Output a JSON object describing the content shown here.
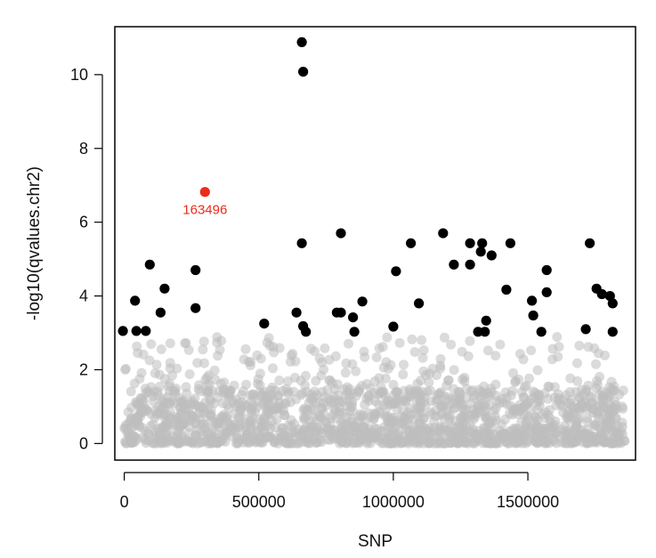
{
  "chart_data": {
    "type": "scatter",
    "title": "",
    "xlabel": "SNP",
    "ylabel": "-log10(qvalues.chr2)",
    "xlim": [
      -35000,
      1900000
    ],
    "ylim": [
      -0.45,
      11.3
    ],
    "xticks": [
      0,
      500000,
      1000000,
      1500000
    ],
    "xtick_labels": [
      "0",
      "500000",
      "1000000",
      "1500000"
    ],
    "yticks": [
      0,
      2,
      4,
      6,
      8,
      10
    ],
    "ytick_labels": [
      "0",
      "2",
      "4",
      "6",
      "8",
      "10"
    ],
    "grid": false,
    "colors": {
      "background_points": "#bdbdbd",
      "significant_points": "#000000",
      "highlight_point": "#ee2a1b"
    },
    "background_summary": {
      "x_range": [
        0,
        1860000
      ],
      "dense_band_y_max": 1.4,
      "max_y": 2.9
    },
    "series": [
      {
        "name": "",
        "color": "#000000",
        "points": [
          {
            "x": -5000,
            "y": 3.05
          },
          {
            "x": 45000,
            "y": 3.05
          },
          {
            "x": 80000,
            "y": 3.05
          },
          {
            "x": 40000,
            "y": 3.87
          },
          {
            "x": 95000,
            "y": 4.85
          },
          {
            "x": 135000,
            "y": 3.55
          },
          {
            "x": 150000,
            "y": 4.2
          },
          {
            "x": 265000,
            "y": 4.7
          },
          {
            "x": 265000,
            "y": 3.67
          },
          {
            "x": 520000,
            "y": 3.25
          },
          {
            "x": 640000,
            "y": 3.55
          },
          {
            "x": 660000,
            "y": 5.43
          },
          {
            "x": 665000,
            "y": 3.18
          },
          {
            "x": 675000,
            "y": 3.03
          },
          {
            "x": 660000,
            "y": 10.88
          },
          {
            "x": 665000,
            "y": 10.08
          },
          {
            "x": 790000,
            "y": 3.55
          },
          {
            "x": 805000,
            "y": 3.55
          },
          {
            "x": 805000,
            "y": 5.7
          },
          {
            "x": 850000,
            "y": 3.42
          },
          {
            "x": 855000,
            "y": 3.03
          },
          {
            "x": 885000,
            "y": 3.85
          },
          {
            "x": 1000000,
            "y": 3.17
          },
          {
            "x": 1010000,
            "y": 4.67
          },
          {
            "x": 1065000,
            "y": 5.43
          },
          {
            "x": 1095000,
            "y": 3.8
          },
          {
            "x": 1185000,
            "y": 5.7
          },
          {
            "x": 1225000,
            "y": 4.85
          },
          {
            "x": 1285000,
            "y": 5.43
          },
          {
            "x": 1285000,
            "y": 4.85
          },
          {
            "x": 1315000,
            "y": 3.03
          },
          {
            "x": 1325000,
            "y": 5.2
          },
          {
            "x": 1330000,
            "y": 5.43
          },
          {
            "x": 1340000,
            "y": 3.03
          },
          {
            "x": 1345000,
            "y": 3.33
          },
          {
            "x": 1365000,
            "y": 5.1
          },
          {
            "x": 1420000,
            "y": 4.17
          },
          {
            "x": 1435000,
            "y": 5.43
          },
          {
            "x": 1515000,
            "y": 3.87
          },
          {
            "x": 1520000,
            "y": 3.47
          },
          {
            "x": 1550000,
            "y": 3.03
          },
          {
            "x": 1570000,
            "y": 4.7
          },
          {
            "x": 1570000,
            "y": 4.1
          },
          {
            "x": 1715000,
            "y": 3.1
          },
          {
            "x": 1730000,
            "y": 5.43
          },
          {
            "x": 1755000,
            "y": 4.2
          },
          {
            "x": 1775000,
            "y": 4.05
          },
          {
            "x": 1805000,
            "y": 4.0
          },
          {
            "x": 1815000,
            "y": 3.8
          },
          {
            "x": 1815000,
            "y": 3.03
          }
        ]
      },
      {
        "name": "",
        "color": "#ee2a1b",
        "points": [
          {
            "x": 300000,
            "y": 6.82,
            "label": "163496"
          }
        ]
      }
    ],
    "annotations": [
      {
        "text": "163496",
        "x": 300000,
        "y": 6.82,
        "color": "#ee2a1b"
      }
    ]
  }
}
